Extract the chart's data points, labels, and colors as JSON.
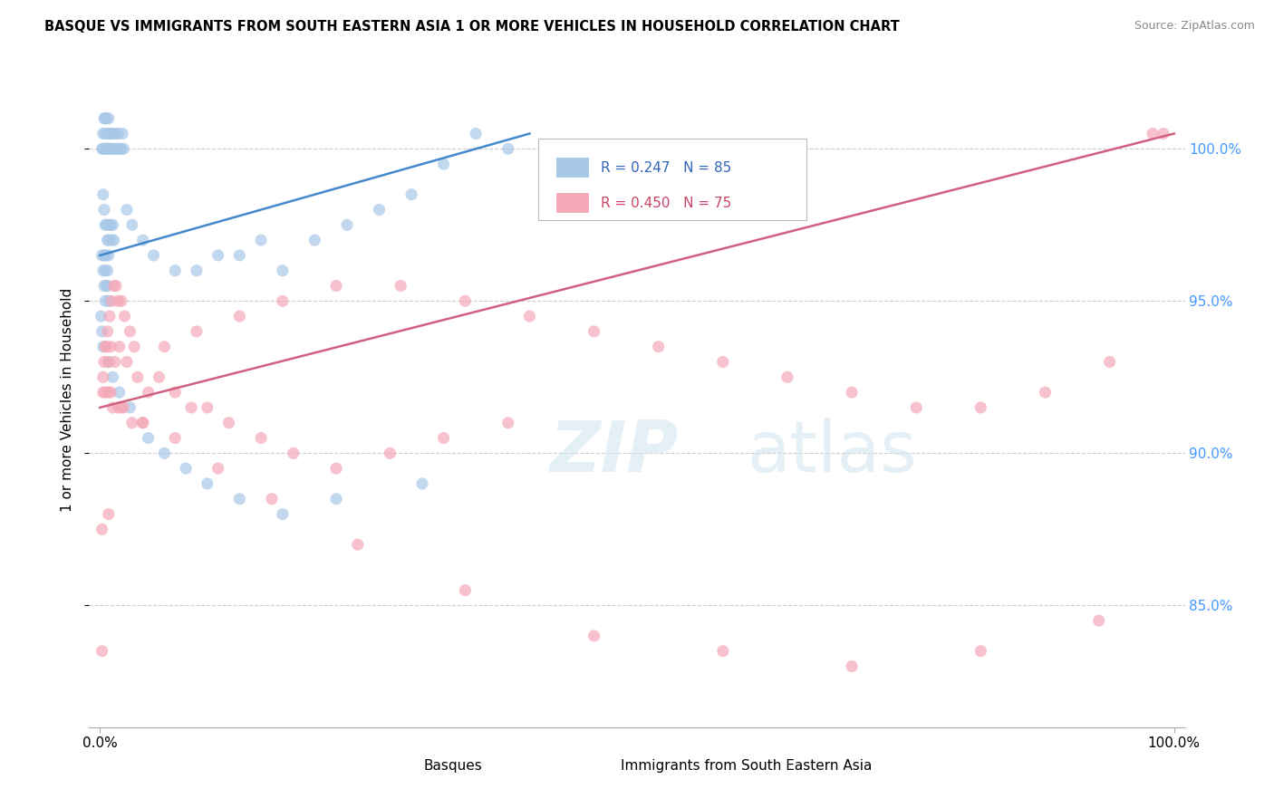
{
  "title": "BASQUE VS IMMIGRANTS FROM SOUTH EASTERN ASIA 1 OR MORE VEHICLES IN HOUSEHOLD CORRELATION CHART",
  "source": "Source: ZipAtlas.com",
  "ylabel": "1 or more Vehicles in Household",
  "blue_color": "#a8c8e8",
  "pink_color": "#f4a8b8",
  "blue_line_color": "#4488cc",
  "pink_line_color": "#d06080",
  "grid_color": "#cccccc",
  "blue_label": "R = 0.247   N = 85",
  "pink_label": "R = 0.450   N = 75",
  "blue_legend_text_color": "#3366bb",
  "pink_legend_text_color": "#cc4466",
  "ytick_color": "#4499ff",
  "yticks": [
    85.0,
    90.0,
    95.0,
    100.0
  ],
  "ytick_labels": [
    "85.0%",
    "90.0%",
    "95.0%",
    "100.0%"
  ],
  "ylim_bottom": 81.0,
  "ylim_top": 102.5,
  "xlim_left": -1.0,
  "xlim_right": 101.0,
  "blue_x": [
    0.2,
    0.3,
    0.3,
    0.4,
    0.4,
    0.5,
    0.5,
    0.5,
    0.6,
    0.6,
    0.7,
    0.7,
    0.8,
    0.8,
    0.9,
    0.9,
    1.0,
    1.0,
    1.1,
    1.2,
    1.3,
    1.4,
    1.5,
    1.6,
    1.7,
    1.8,
    1.9,
    2.0,
    2.1,
    2.2,
    0.3,
    0.4,
    0.5,
    0.6,
    0.7,
    0.8,
    0.9,
    1.0,
    1.1,
    1.2,
    1.3,
    0.2,
    0.3,
    0.4,
    0.5,
    0.6,
    0.7,
    0.8,
    0.4,
    0.5,
    0.6,
    0.7,
    0.8,
    2.5,
    3.0,
    4.0,
    5.0,
    7.0,
    9.0,
    11.0,
    13.0,
    15.0,
    17.0,
    20.0,
    23.0,
    26.0,
    29.0,
    32.0,
    35.0,
    38.0,
    0.1,
    0.2,
    0.3,
    0.8,
    1.2,
    1.8,
    2.8,
    4.5,
    6.0,
    8.0,
    10.0,
    13.0,
    17.0,
    22.0,
    30.0
  ],
  "blue_y": [
    100.0,
    100.0,
    100.5,
    100.0,
    101.0,
    100.0,
    100.5,
    101.0,
    100.0,
    101.0,
    100.0,
    100.5,
    100.0,
    101.0,
    100.0,
    100.5,
    100.0,
    100.5,
    100.0,
    100.5,
    100.0,
    100.0,
    100.5,
    100.0,
    100.5,
    100.0,
    100.0,
    100.0,
    100.5,
    100.0,
    98.5,
    98.0,
    97.5,
    97.5,
    97.0,
    97.0,
    97.5,
    97.5,
    97.0,
    97.5,
    97.0,
    96.5,
    96.0,
    96.5,
    96.0,
    96.5,
    96.0,
    96.5,
    95.5,
    95.0,
    95.5,
    95.5,
    95.0,
    98.0,
    97.5,
    97.0,
    96.5,
    96.0,
    96.0,
    96.5,
    96.5,
    97.0,
    96.0,
    97.0,
    97.5,
    98.0,
    98.5,
    99.5,
    100.5,
    100.0,
    94.5,
    94.0,
    93.5,
    93.0,
    92.5,
    92.0,
    91.5,
    90.5,
    90.0,
    89.5,
    89.0,
    88.5,
    88.0,
    88.5,
    89.0
  ],
  "pink_x": [
    0.2,
    0.3,
    0.5,
    0.7,
    0.9,
    1.1,
    1.3,
    1.5,
    1.7,
    2.0,
    2.3,
    2.8,
    3.2,
    0.4,
    0.6,
    0.8,
    1.0,
    1.4,
    1.8,
    2.5,
    3.5,
    4.5,
    0.3,
    0.5,
    0.8,
    1.2,
    1.7,
    2.2,
    3.0,
    4.0,
    5.5,
    7.0,
    8.5,
    10.0,
    12.0,
    15.0,
    18.0,
    22.0,
    27.0,
    32.0,
    38.0,
    6.0,
    9.0,
    13.0,
    17.0,
    22.0,
    28.0,
    34.0,
    40.0,
    46.0,
    52.0,
    58.0,
    64.0,
    70.0,
    76.0,
    82.0,
    88.0,
    94.0,
    99.0,
    1.0,
    2.0,
    4.0,
    7.0,
    11.0,
    16.0,
    24.0,
    34.0,
    46.0,
    58.0,
    70.0,
    82.0,
    93.0,
    98.0,
    0.2,
    0.8
  ],
  "pink_y": [
    83.5,
    92.0,
    93.5,
    94.0,
    94.5,
    95.0,
    95.5,
    95.5,
    95.0,
    95.0,
    94.5,
    94.0,
    93.5,
    93.0,
    93.5,
    93.0,
    93.5,
    93.0,
    93.5,
    93.0,
    92.5,
    92.0,
    92.5,
    92.0,
    92.0,
    91.5,
    91.5,
    91.5,
    91.0,
    91.0,
    92.5,
    92.0,
    91.5,
    91.5,
    91.0,
    90.5,
    90.0,
    89.5,
    90.0,
    90.5,
    91.0,
    93.5,
    94.0,
    94.5,
    95.0,
    95.5,
    95.5,
    95.0,
    94.5,
    94.0,
    93.5,
    93.0,
    92.5,
    92.0,
    91.5,
    91.5,
    92.0,
    93.0,
    100.5,
    92.0,
    91.5,
    91.0,
    90.5,
    89.5,
    88.5,
    87.0,
    85.5,
    84.0,
    83.5,
    83.0,
    83.5,
    84.5,
    100.5,
    87.5,
    88.0
  ],
  "blue_line_x0": 0.0,
  "blue_line_x1": 40.0,
  "blue_line_y0": 96.5,
  "blue_line_y1": 100.5,
  "pink_line_x0": 0.0,
  "pink_line_x1": 100.0,
  "pink_line_y0": 91.5,
  "pink_line_y1": 100.5
}
